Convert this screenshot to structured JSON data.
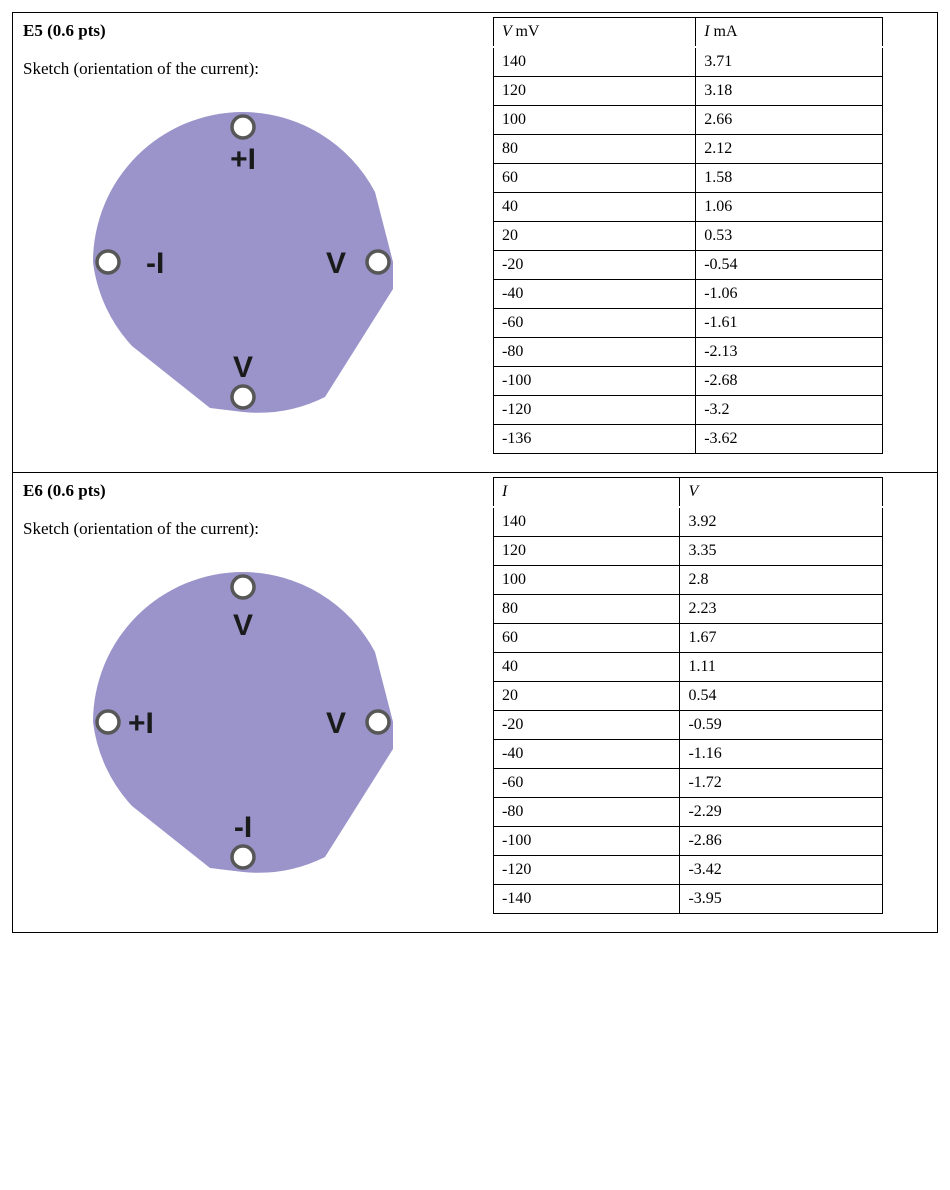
{
  "sections": {
    "e5": {
      "title": "E5 (0.6 pts)",
      "sketch_label": "Sketch (orientation of the current):",
      "terminals": {
        "top": "+I",
        "left": "-I",
        "right": "V",
        "bottom": "V"
      },
      "table": {
        "col1_header_var": "V",
        "col1_header_unit": "mV",
        "col2_header_var": "I",
        "col2_header_unit": "mA",
        "rows": [
          [
            "140",
            "3.71"
          ],
          [
            "120",
            "3.18"
          ],
          [
            "100",
            "2.66"
          ],
          [
            "80",
            "2.12"
          ],
          [
            "60",
            "1.58"
          ],
          [
            "40",
            "1.06"
          ],
          [
            "20",
            "0.53"
          ],
          [
            "-20",
            "-0.54"
          ],
          [
            "-40",
            "-1.06"
          ],
          [
            "-60",
            "-1.61"
          ],
          [
            "-80",
            "-2.13"
          ],
          [
            "-100",
            "-2.68"
          ],
          [
            "-120",
            "-3.2"
          ],
          [
            "-136",
            "-3.62"
          ]
        ]
      }
    },
    "e6": {
      "title": "E6 (0.6 pts)",
      "sketch_label": "Sketch (orientation of the current):",
      "terminals": {
        "top": "V",
        "left": "+I",
        "right": "V",
        "bottom": "-I"
      },
      "table": {
        "col1_header_var": "I",
        "col1_header_unit": "",
        "col2_header_var": "V",
        "col2_header_unit": "",
        "rows": [
          [
            "140",
            "3.92"
          ],
          [
            "120",
            "3.35"
          ],
          [
            "100",
            "2.8"
          ],
          [
            "80",
            "2.23"
          ],
          [
            "60",
            "1.67"
          ],
          [
            "40",
            "1.11"
          ],
          [
            "20",
            "0.54"
          ],
          [
            "-20",
            "-0.59"
          ],
          [
            "-40",
            "-1.16"
          ],
          [
            "-60",
            "-1.72"
          ],
          [
            "-80",
            "-2.29"
          ],
          [
            "-100",
            "-2.86"
          ],
          [
            "-120",
            "-3.42"
          ],
          [
            "-140",
            "-3.95"
          ]
        ]
      }
    }
  },
  "diagram_style": {
    "wafer_fill": "#9a94ca",
    "ring_stroke": "#575757",
    "ring_fill": "#ffffff",
    "label_color": "#1a1a1a"
  }
}
